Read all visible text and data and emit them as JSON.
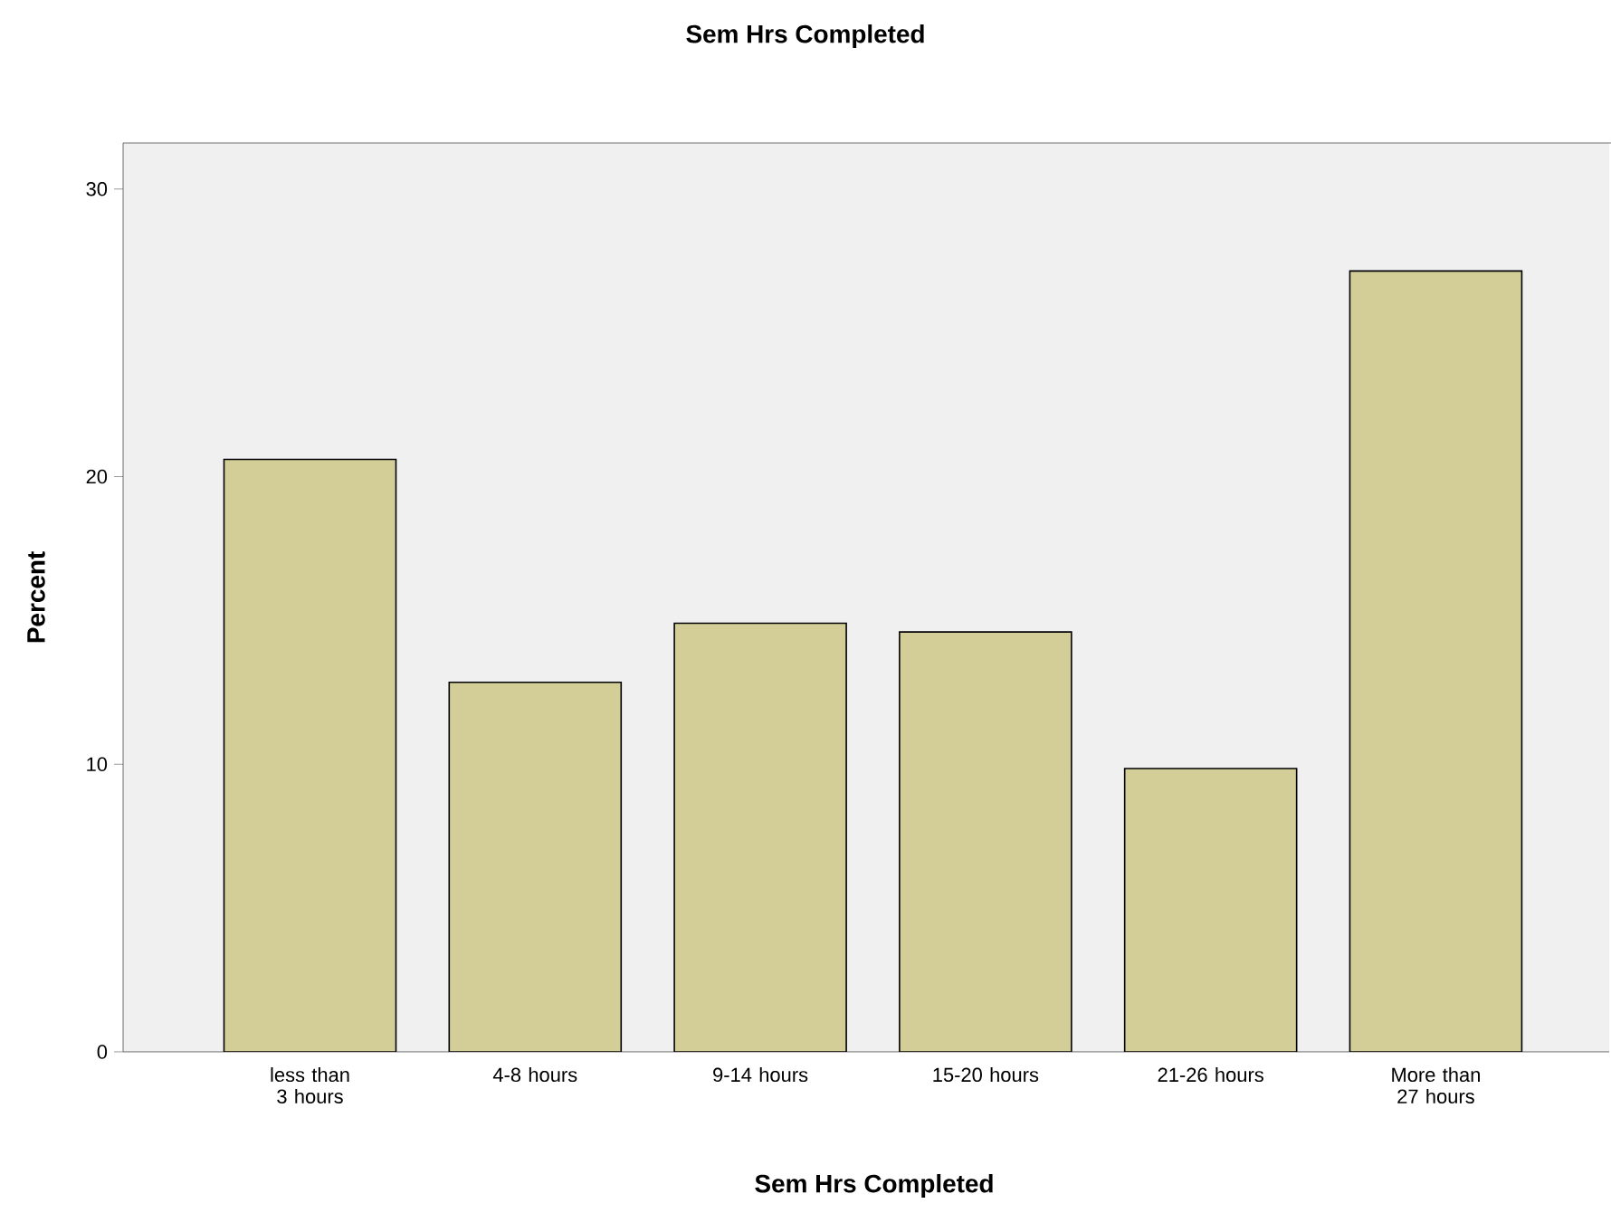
{
  "chart_data": {
    "type": "bar",
    "title": "Sem Hrs Completed",
    "xlabel": "Sem Hrs Completed",
    "ylabel": "Percent",
    "categories": [
      "less than 3 hours",
      "4-8 hours",
      "9-14 hours",
      "15-20 hours",
      "21-26 hours",
      "More than 27 hours"
    ],
    "values": [
      20.6,
      12.85,
      14.9,
      14.6,
      9.85,
      27.15
    ],
    "color": "#d3ce97",
    "ylim": [
      0,
      31.6
    ],
    "yticks": [
      0,
      10,
      20,
      30
    ],
    "grid": false
  }
}
